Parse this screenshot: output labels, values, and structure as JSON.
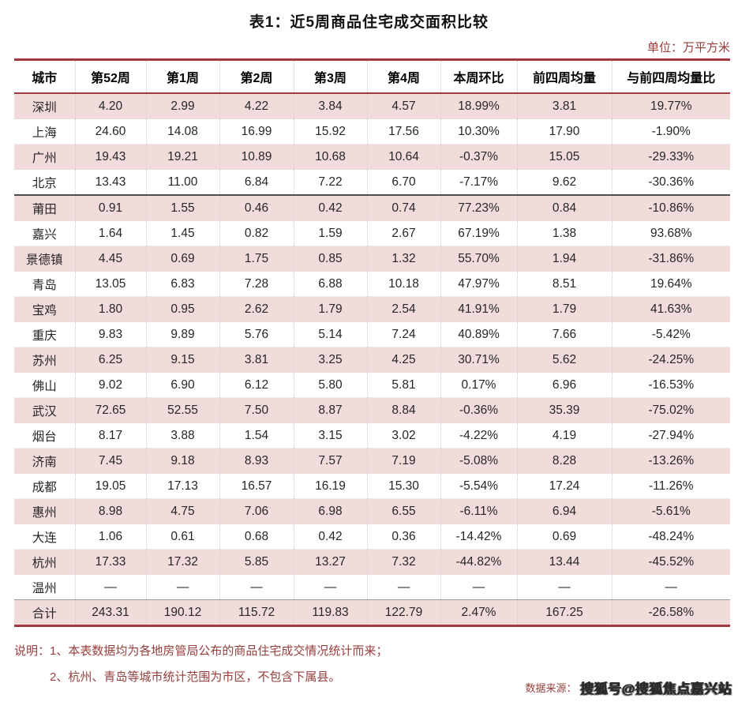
{
  "page": {
    "title": "表1：近5周商品住宅成交面积比较",
    "unit_label": "单位：万平方米",
    "notes_label": "说明：",
    "note1": "1、本表数据均为各地房管局公布的商品住宅成交情况统计而来；",
    "note2": "2、杭州、青岛等城市统计范围为市区，不包含下属县。",
    "source_label": "数据来源：",
    "source_value": "搜狐号@搜狐焦点嘉兴站"
  },
  "colors": {
    "accent_dark_red": "#a03a40",
    "note_text_red": "#96403e",
    "positive_red": "#cf4950",
    "negative_green": "#52b388",
    "row_pink": "#f2dcdb"
  },
  "table": {
    "columns": [
      "城市",
      "第52周",
      "第1周",
      "第2周",
      "第3周",
      "第4周",
      "本周环比",
      "前四周均量",
      "与前四周均量比"
    ],
    "percent_value_indexes": [
      5,
      7
    ],
    "rows": [
      {
        "city": "深圳",
        "values": [
          "4.20",
          "2.99",
          "4.22",
          "3.84",
          "4.57",
          "18.99%",
          "3.81",
          "19.77%"
        ]
      },
      {
        "city": "上海",
        "values": [
          "24.60",
          "14.08",
          "16.99",
          "15.92",
          "17.56",
          "10.30%",
          "17.90",
          "-1.90%"
        ]
      },
      {
        "city": "广州",
        "values": [
          "19.43",
          "19.21",
          "10.89",
          "10.68",
          "10.64",
          "-0.37%",
          "15.05",
          "-29.33%"
        ]
      },
      {
        "city": "北京",
        "values": [
          "13.43",
          "11.00",
          "6.84",
          "7.22",
          "6.70",
          "-7.17%",
          "9.62",
          "-30.36%"
        ],
        "group_separator_after": true
      },
      {
        "city": "莆田",
        "values": [
          "0.91",
          "1.55",
          "0.46",
          "0.42",
          "0.74",
          "77.23%",
          "0.84",
          "-10.86%"
        ]
      },
      {
        "city": "嘉兴",
        "values": [
          "1.64",
          "1.45",
          "0.82",
          "1.59",
          "2.67",
          "67.19%",
          "1.38",
          "93.68%"
        ]
      },
      {
        "city": "景德镇",
        "values": [
          "4.45",
          "0.69",
          "1.75",
          "0.85",
          "1.32",
          "55.70%",
          "1.94",
          "-31.86%"
        ]
      },
      {
        "city": "青岛",
        "values": [
          "13.05",
          "6.83",
          "7.28",
          "6.88",
          "10.18",
          "47.97%",
          "8.51",
          "19.64%"
        ]
      },
      {
        "city": "宝鸡",
        "values": [
          "1.80",
          "0.95",
          "2.62",
          "1.79",
          "2.54",
          "41.91%",
          "1.79",
          "41.63%"
        ]
      },
      {
        "city": "重庆",
        "values": [
          "9.83",
          "9.89",
          "5.76",
          "5.14",
          "7.24",
          "40.89%",
          "7.66",
          "-5.42%"
        ]
      },
      {
        "city": "苏州",
        "values": [
          "6.25",
          "9.15",
          "3.81",
          "3.25",
          "4.25",
          "30.71%",
          "5.62",
          "-24.25%"
        ]
      },
      {
        "city": "佛山",
        "values": [
          "9.02",
          "6.90",
          "6.12",
          "5.80",
          "5.81",
          "0.17%",
          "6.96",
          "-16.53%"
        ]
      },
      {
        "city": "武汉",
        "values": [
          "72.65",
          "52.55",
          "7.50",
          "8.87",
          "8.84",
          "-0.36%",
          "35.39",
          "-75.02%"
        ]
      },
      {
        "city": "烟台",
        "values": [
          "8.17",
          "3.88",
          "1.54",
          "3.15",
          "3.02",
          "-4.22%",
          "4.19",
          "-27.94%"
        ]
      },
      {
        "city": "济南",
        "values": [
          "7.45",
          "9.18",
          "8.93",
          "7.57",
          "7.19",
          "-5.08%",
          "8.28",
          "-13.26%"
        ]
      },
      {
        "city": "成都",
        "values": [
          "19.05",
          "17.13",
          "16.57",
          "16.19",
          "15.30",
          "-5.54%",
          "17.24",
          "-11.26%"
        ]
      },
      {
        "city": "惠州",
        "values": [
          "8.98",
          "4.75",
          "7.06",
          "6.98",
          "6.55",
          "-6.11%",
          "6.94",
          "-5.61%"
        ]
      },
      {
        "city": "大连",
        "values": [
          "1.06",
          "0.61",
          "0.68",
          "0.42",
          "0.36",
          "-14.42%",
          "0.69",
          "-48.24%"
        ]
      },
      {
        "city": "杭州",
        "values": [
          "17.33",
          "17.32",
          "5.85",
          "13.27",
          "7.32",
          "-44.82%",
          "13.44",
          "-45.52%"
        ]
      },
      {
        "city": "温州",
        "values": [
          "—",
          "—",
          "—",
          "—",
          "—",
          "—",
          "—",
          "—"
        ]
      },
      {
        "city": "合计",
        "values": [
          "243.31",
          "190.12",
          "115.72",
          "119.83",
          "122.79",
          "2.47%",
          "167.25",
          "-26.58%"
        ],
        "is_total": true
      }
    ]
  }
}
